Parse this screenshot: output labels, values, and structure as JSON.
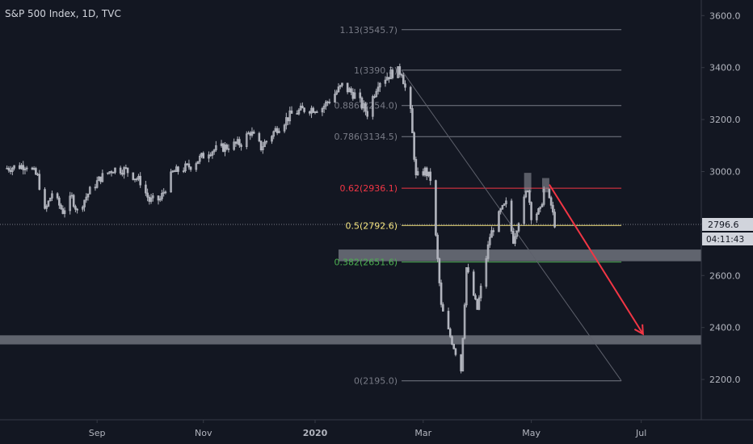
{
  "title": "S&P 500 Index, 1D, TVC",
  "chart_data": {
    "type": "candlestick",
    "ylim": [
      2045,
      3660
    ],
    "y_ticks": [
      2200,
      2400,
      2600,
      2800,
      3000,
      3200,
      3400,
      3600
    ],
    "y_tick_labels": [
      "2200.0",
      "2400.0",
      "2600.0",
      "2800.0",
      "3000.0",
      "3200.0",
      "3400.0",
      "3600.0"
    ],
    "x_ticks": [
      {
        "label": "Sep",
        "date": "2019-09-03"
      },
      {
        "label": "Nov",
        "date": "2019-11-01"
      },
      {
        "label": "2020",
        "date": "2020-01-02",
        "bold": true
      },
      {
        "label": "Mar",
        "date": "2020-03-02"
      },
      {
        "label": "May",
        "date": "2020-05-01"
      },
      {
        "label": "Jul",
        "date": "2020-07-01"
      }
    ],
    "price_series": [
      {
        "date": "2019-07-15",
        "close": 3013
      },
      {
        "date": "2019-07-26",
        "close": 3025
      },
      {
        "date": "2019-08-01",
        "close": 2980
      },
      {
        "date": "2019-08-05",
        "close": 2845
      },
      {
        "date": "2019-08-09",
        "close": 2918
      },
      {
        "date": "2019-08-15",
        "close": 2847
      },
      {
        "date": "2019-08-20",
        "close": 2900
      },
      {
        "date": "2019-08-23",
        "close": 2847
      },
      {
        "date": "2019-08-30",
        "close": 2926
      },
      {
        "date": "2019-09-05",
        "close": 2976
      },
      {
        "date": "2019-09-12",
        "close": 3010
      },
      {
        "date": "2019-09-19",
        "close": 3006
      },
      {
        "date": "2019-09-27",
        "close": 2962
      },
      {
        "date": "2019-10-02",
        "close": 2888
      },
      {
        "date": "2019-10-08",
        "close": 2893
      },
      {
        "date": "2019-10-15",
        "close": 2996
      },
      {
        "date": "2019-10-25",
        "close": 3023
      },
      {
        "date": "2019-11-04",
        "close": 3078
      },
      {
        "date": "2019-11-14",
        "close": 3096
      },
      {
        "date": "2019-11-22",
        "close": 3110
      },
      {
        "date": "2019-11-27",
        "close": 3153
      },
      {
        "date": "2019-12-03",
        "close": 3093
      },
      {
        "date": "2019-12-12",
        "close": 3168
      },
      {
        "date": "2019-12-20",
        "close": 3221
      },
      {
        "date": "2019-12-27",
        "close": 3240
      },
      {
        "date": "2020-01-06",
        "close": 3246
      },
      {
        "date": "2020-01-17",
        "close": 3330
      },
      {
        "date": "2020-01-24",
        "close": 3295
      },
      {
        "date": "2020-01-31",
        "close": 3225
      },
      {
        "date": "2020-02-06",
        "close": 3345
      },
      {
        "date": "2020-02-14",
        "close": 3380
      },
      {
        "date": "2020-02-19",
        "close": 3386
      },
      {
        "date": "2020-02-24",
        "close": 3225
      },
      {
        "date": "2020-02-27",
        "close": 2978
      },
      {
        "date": "2020-03-03",
        "close": 3003
      },
      {
        "date": "2020-03-06",
        "close": 2972
      },
      {
        "date": "2020-03-09",
        "close": 2747
      },
      {
        "date": "2020-03-12",
        "close": 2481
      },
      {
        "date": "2020-03-16",
        "close": 2386
      },
      {
        "date": "2020-03-20",
        "close": 2305
      },
      {
        "date": "2020-03-23",
        "close": 2237
      },
      {
        "date": "2020-03-26",
        "close": 2630
      },
      {
        "date": "2020-04-01",
        "close": 2470
      },
      {
        "date": "2020-04-08",
        "close": 2750
      },
      {
        "date": "2020-04-14",
        "close": 2846
      },
      {
        "date": "2020-04-17",
        "close": 2875
      },
      {
        "date": "2020-04-21",
        "close": 2737
      },
      {
        "date": "2020-04-29",
        "close": 2939
      },
      {
        "date": "2020-05-01",
        "close": 2831
      },
      {
        "date": "2020-05-06",
        "close": 2848
      },
      {
        "date": "2020-05-08",
        "close": 2929
      },
      {
        "date": "2020-05-12",
        "close": 2870
      },
      {
        "date": "2020-05-14",
        "close": 2800
      }
    ],
    "fib_retracement": [
      {
        "label": "1.13(3545.7)",
        "value": 3545.7,
        "color": "#787b86"
      },
      {
        "label": "1(3390.3)",
        "value": 3390.3,
        "color": "#787b86"
      },
      {
        "label": "0.886(3254.0)",
        "value": 3254.0,
        "color": "#787b86"
      },
      {
        "label": "0.786(3134.5)",
        "value": 3134.5,
        "color": "#787b86"
      },
      {
        "label": "0.62(2936.1)",
        "value": 2936.1,
        "color": "#f23645"
      },
      {
        "label": "0.5(2792.6)",
        "value": 2792.6,
        "color": "#f7e67e"
      },
      {
        "label": "0.382(2651.6)",
        "value": 2651.6,
        "color": "#4caf50"
      },
      {
        "label": "0(2195.0)",
        "value": 2195.0,
        "color": "#787b86"
      }
    ],
    "fib_range": {
      "start_date": "2020-02-19",
      "end_date": "2020-06-20"
    },
    "trend_line": {
      "from": {
        "date": "2020-02-19",
        "value": 3390.3
      },
      "to": {
        "date": "2020-06-20",
        "value": 2195.0
      }
    },
    "zones": [
      {
        "from": 2655,
        "to": 2700,
        "x_start_date": "2020-01-15"
      },
      {
        "from": 2335,
        "to": 2370,
        "x_start_date": "2019-06-01"
      }
    ],
    "highlight_boxes": [
      {
        "date_from": "2020-04-27",
        "date_to": "2020-05-01",
        "from": 2920,
        "to": 2995
      },
      {
        "date_from": "2020-05-07",
        "date_to": "2020-05-11",
        "from": 2920,
        "to": 2975
      }
    ],
    "projection_arrow": {
      "from": {
        "date": "2020-05-11",
        "value": 2950
      },
      "to": {
        "date": "2020-07-02",
        "value": 2375
      },
      "color": "#f23645"
    },
    "current_price": {
      "value": 2796.6,
      "label": "2796.6"
    },
    "countdown": "04:11:43"
  },
  "colors": {
    "background": "#131722",
    "axis_text": "#b2b5be",
    "grid_border": "#363a45",
    "candle": "#b2b5be"
  }
}
